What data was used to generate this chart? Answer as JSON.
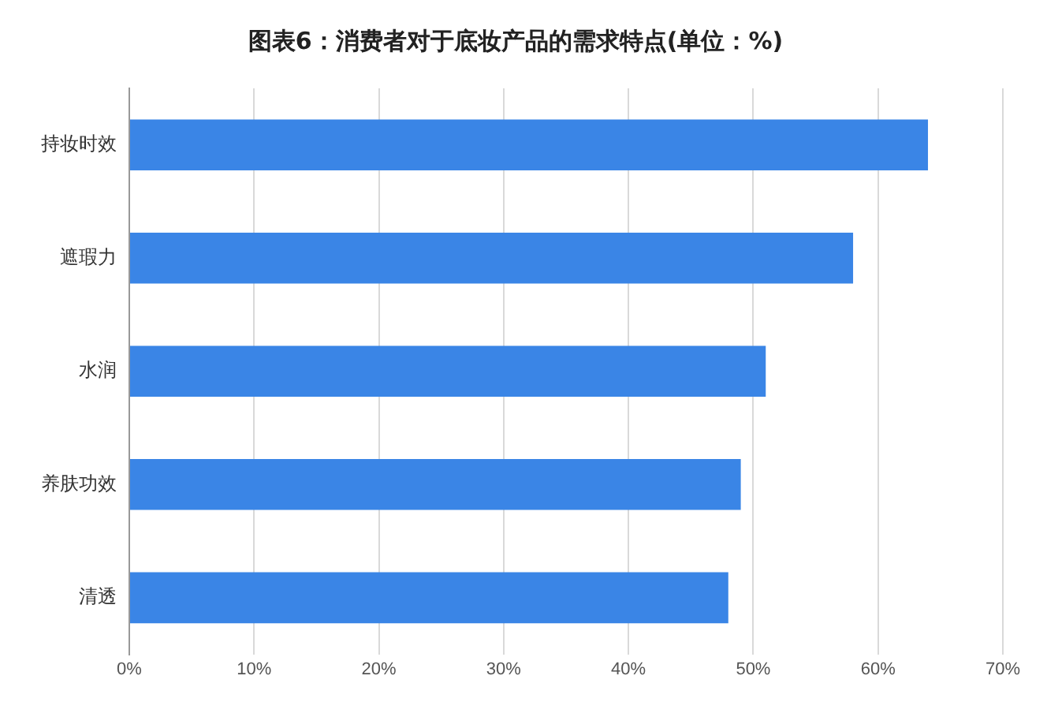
{
  "chart_data": {
    "type": "bar",
    "orientation": "horizontal",
    "title": "图表6：消费者对于底妆产品的需求特点(单位：%)",
    "categories": [
      "持妆时效",
      "遮瑕力",
      "水润",
      "养肤功效",
      "清透"
    ],
    "values": [
      64,
      58,
      51,
      49,
      48
    ],
    "color": "#3a85e6",
    "xlim": [
      0,
      70
    ],
    "xticks": [
      {
        "value": 0,
        "label": "0%"
      },
      {
        "value": 10,
        "label": "10%"
      },
      {
        "value": 20,
        "label": "20%"
      },
      {
        "value": 30,
        "label": "30%"
      },
      {
        "value": 40,
        "label": "40%"
      },
      {
        "value": 50,
        "label": "50%"
      },
      {
        "value": 60,
        "label": "60%"
      },
      {
        "value": 70,
        "label": "70%"
      }
    ],
    "grid": "x"
  }
}
